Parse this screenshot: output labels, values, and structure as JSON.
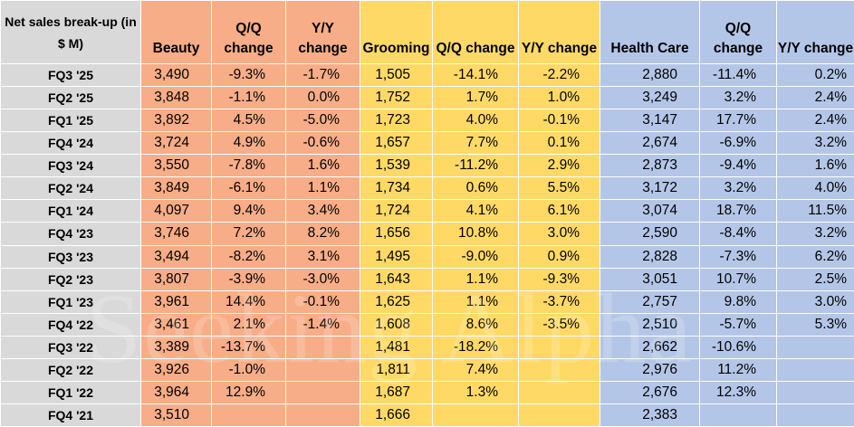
{
  "chart_data": {
    "type": "table",
    "title": "Net sales break-up (in $ M)",
    "segments": [
      {
        "name": "Beauty",
        "q_header": "Q/Q change",
        "y_header": "Y/Y change"
      },
      {
        "name": "Grooming",
        "q_header": "Q/Q change",
        "y_header": "Y/Y change"
      },
      {
        "name": "Health Care",
        "q_header": "Q/Q change",
        "y_header": "Y/Y change"
      }
    ],
    "rows": [
      {
        "quarter": "FQ3 '25",
        "beauty": "3,490",
        "beauty_qq": "-9.3%",
        "beauty_yy": "-1.7%",
        "grooming": "1,505",
        "grooming_qq": "-14.1%",
        "grooming_yy": "-2.2%",
        "health": "2,880",
        "health_qq": "-11.4%",
        "health_yy": "0.2%"
      },
      {
        "quarter": "FQ2 '25",
        "beauty": "3,848",
        "beauty_qq": "-1.1%",
        "beauty_yy": "0.0%",
        "grooming": "1,752",
        "grooming_qq": "1.7%",
        "grooming_yy": "1.0%",
        "health": "3,249",
        "health_qq": "3.2%",
        "health_yy": "2.4%"
      },
      {
        "quarter": "FQ1 '25",
        "beauty": "3,892",
        "beauty_qq": "4.5%",
        "beauty_yy": "-5.0%",
        "grooming": "1,723",
        "grooming_qq": "4.0%",
        "grooming_yy": "-0.1%",
        "health": "3,147",
        "health_qq": "17.7%",
        "health_yy": "2.4%"
      },
      {
        "quarter": "FQ4 '24",
        "beauty": "3,724",
        "beauty_qq": "4.9%",
        "beauty_yy": "-0.6%",
        "grooming": "1,657",
        "grooming_qq": "7.7%",
        "grooming_yy": "0.1%",
        "health": "2,674",
        "health_qq": "-6.9%",
        "health_yy": "3.2%"
      },
      {
        "quarter": "FQ3 '24",
        "beauty": "3,550",
        "beauty_qq": "-7.8%",
        "beauty_yy": "1.6%",
        "grooming": "1,539",
        "grooming_qq": "-11.2%",
        "grooming_yy": "2.9%",
        "health": "2,873",
        "health_qq": "-9.4%",
        "health_yy": "1.6%"
      },
      {
        "quarter": "FQ2 '24",
        "beauty": "3,849",
        "beauty_qq": "-6.1%",
        "beauty_yy": "1.1%",
        "grooming": "1,734",
        "grooming_qq": "0.6%",
        "grooming_yy": "5.5%",
        "health": "3,172",
        "health_qq": "3.2%",
        "health_yy": "4.0%"
      },
      {
        "quarter": "FQ1 '24",
        "beauty": "4,097",
        "beauty_qq": "9.4%",
        "beauty_yy": "3.4%",
        "grooming": "1,724",
        "grooming_qq": "4.1%",
        "grooming_yy": "6.1%",
        "health": "3,074",
        "health_qq": "18.7%",
        "health_yy": "11.5%"
      },
      {
        "quarter": "FQ4 '23",
        "beauty": "3,746",
        "beauty_qq": "7.2%",
        "beauty_yy": "8.2%",
        "grooming": "1,656",
        "grooming_qq": "10.8%",
        "grooming_yy": "3.0%",
        "health": "2,590",
        "health_qq": "-8.4%",
        "health_yy": "3.2%"
      },
      {
        "quarter": "FQ3 '23",
        "beauty": "3,494",
        "beauty_qq": "-8.2%",
        "beauty_yy": "3.1%",
        "grooming": "1,495",
        "grooming_qq": "-9.0%",
        "grooming_yy": "0.9%",
        "health": "2,828",
        "health_qq": "-7.3%",
        "health_yy": "6.2%"
      },
      {
        "quarter": "FQ2 '23",
        "beauty": "3,807",
        "beauty_qq": "-3.9%",
        "beauty_yy": "-3.0%",
        "grooming": "1,643",
        "grooming_qq": "1.1%",
        "grooming_yy": "-9.3%",
        "health": "3,051",
        "health_qq": "10.7%",
        "health_yy": "2.5%"
      },
      {
        "quarter": "FQ1 '23",
        "beauty": "3,961",
        "beauty_qq": "14.4%",
        "beauty_yy": "-0.1%",
        "grooming": "1,625",
        "grooming_qq": "1.1%",
        "grooming_yy": "-3.7%",
        "health": "2,757",
        "health_qq": "9.8%",
        "health_yy": "3.0%"
      },
      {
        "quarter": "FQ4 '22",
        "beauty": "3,461",
        "beauty_qq": "2.1%",
        "beauty_yy": "-1.4%",
        "grooming": "1,608",
        "grooming_qq": "8.6%",
        "grooming_yy": "-3.5%",
        "health": "2,510",
        "health_qq": "-5.7%",
        "health_yy": "5.3%"
      },
      {
        "quarter": "FQ3 '22",
        "beauty": "3,389",
        "beauty_qq": "-13.7%",
        "beauty_yy": "",
        "grooming": "1,481",
        "grooming_qq": "-18.2%",
        "grooming_yy": "",
        "health": "2,662",
        "health_qq": "-10.6%",
        "health_yy": ""
      },
      {
        "quarter": "FQ2 '22",
        "beauty": "3,926",
        "beauty_qq": "-1.0%",
        "beauty_yy": "",
        "grooming": "1,811",
        "grooming_qq": "7.4%",
        "grooming_yy": "",
        "health": "2,976",
        "health_qq": "11.2%",
        "health_yy": ""
      },
      {
        "quarter": "FQ1 '22",
        "beauty": "3,964",
        "beauty_qq": "12.9%",
        "beauty_yy": "",
        "grooming": "1,687",
        "grooming_qq": "1.3%",
        "grooming_yy": "",
        "health": "2,676",
        "health_qq": "12.3%",
        "health_yy": ""
      },
      {
        "quarter": "FQ4 '21",
        "beauty": "3,510",
        "beauty_qq": "",
        "beauty_yy": "",
        "grooming": "1,666",
        "grooming_qq": "",
        "grooming_yy": "",
        "health": "2,383",
        "health_qq": "",
        "health_yy": ""
      }
    ],
    "colors": {
      "label": "#d9d9d9",
      "beauty": "#f7ad87",
      "grooming": "#ffd966",
      "health": "#b4c6e7"
    }
  },
  "watermark": "Seeking Alpha"
}
